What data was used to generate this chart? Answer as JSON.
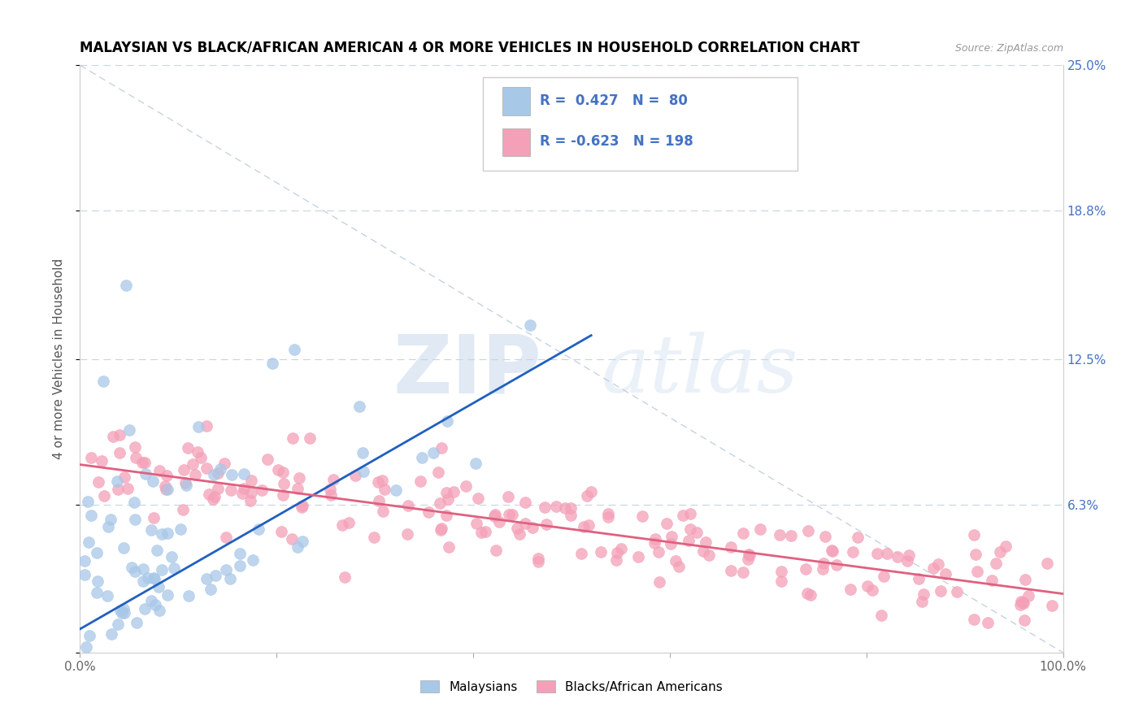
{
  "title": "MALAYSIAN VS BLACK/AFRICAN AMERICAN 4 OR MORE VEHICLES IN HOUSEHOLD CORRELATION CHART",
  "source_text": "Source: ZipAtlas.com",
  "ylabel": "4 or more Vehicles in Household",
  "xlim": [
    0.0,
    100.0
  ],
  "ylim": [
    0.0,
    25.0
  ],
  "legend_label1": "Malaysians",
  "legend_label2": "Blacks/African Americans",
  "color_blue": "#a8c8e8",
  "color_pink": "#f4a0b8",
  "color_blue_line": "#2060c0",
  "color_pink_line": "#e06080",
  "color_dash": "#b8c8d8",
  "watermark_zip": "ZIP",
  "watermark_atlas": "atlas",
  "blue_R": 0.427,
  "blue_N": 80,
  "pink_R": -0.623,
  "pink_N": 198,
  "blue_line_x0": 0,
  "blue_line_x1": 52,
  "blue_line_y0": 1.0,
  "blue_line_y1": 13.5,
  "pink_line_x0": 0,
  "pink_line_x1": 100,
  "pink_line_y0": 8.0,
  "pink_line_y1": 2.5,
  "dash_line_x0": 0,
  "dash_line_x1": 100,
  "dash_line_y0": 25,
  "dash_line_y1": 0,
  "ytick_vals": [
    0,
    6.3,
    12.5,
    18.8,
    25.0
  ],
  "ytick_labels": [
    "",
    "6.3%",
    "12.5%",
    "18.8%",
    "25.0%"
  ],
  "xtick_vals": [
    0,
    20,
    40,
    60,
    80,
    100
  ],
  "xtick_labels": [
    "0.0%",
    "",
    "",
    "",
    "",
    "100.0%"
  ]
}
